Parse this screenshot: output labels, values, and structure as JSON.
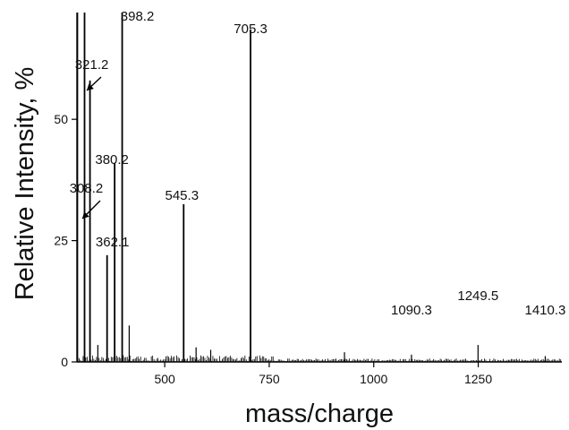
{
  "chart_data": {
    "type": "line",
    "xlabel": "mass/charge",
    "ylabel": "Relative Intensity, %",
    "xlim": [
      290,
      1450
    ],
    "ylim": [
      0,
      72
    ],
    "x_ticks": [
      500,
      750,
      1000,
      1250
    ],
    "y_ticks": [
      0,
      25,
      50
    ],
    "grid": false,
    "legend": "none",
    "series": [
      {
        "values": [
          [
            291,
            72
          ],
          [
            308.2,
            72
          ],
          [
            321.2,
            58
          ],
          [
            340,
            3.5
          ],
          [
            362.1,
            22
          ],
          [
            380.2,
            41
          ],
          [
            398.2,
            72
          ],
          [
            415,
            7.5
          ],
          [
            545.3,
            32.5
          ],
          [
            575,
            3
          ],
          [
            610,
            2.5
          ],
          [
            705.3,
            68.5
          ],
          [
            930,
            2
          ],
          [
            1090.3,
            1.5
          ],
          [
            1249.5,
            3.5
          ],
          [
            1410.3,
            1.2
          ]
        ]
      }
    ],
    "peak_labels": [
      {
        "label": "398.2",
        "x": 398.2,
        "y": 72
      },
      {
        "label": "705.3",
        "x": 705.3,
        "y": 68.5
      },
      {
        "label": "321.2",
        "x": 321.2,
        "y": 58
      },
      {
        "label": "380.2",
        "x": 380.2,
        "y": 41
      },
      {
        "label": "545.3",
        "x": 545.3,
        "y": 32.5
      },
      {
        "label": "308.2",
        "x": 308.2,
        "y": 72
      },
      {
        "label": "362.1",
        "x": 362.1,
        "y": 22
      },
      {
        "label": "1090.3",
        "x": 1090.3,
        "y": 1.5
      },
      {
        "label": "1249.5",
        "x": 1249.5,
        "y": 3.5
      },
      {
        "label": "1410.3",
        "x": 1410.3,
        "y": 1.2
      }
    ]
  }
}
